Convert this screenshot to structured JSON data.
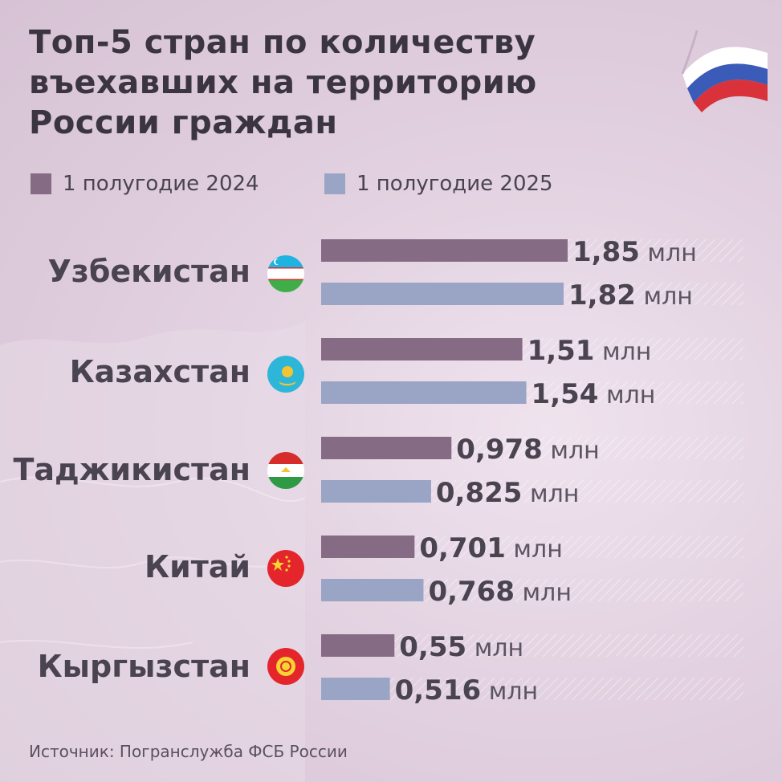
{
  "title": {
    "lines": [
      "Топ-5 стран по количеству",
      "въехавших на территорию",
      "России граждан"
    ]
  },
  "legend": [
    {
      "label": "1 полугодие 2024",
      "color": "#856b83"
    },
    {
      "label": "1 полугодие 2025",
      "color": "#9aa4c4"
    }
  ],
  "colors": {
    "bar_2024": "#856b83",
    "bar_2025": "#9aa4c4",
    "value_text": "#4a4450",
    "unit_text": "#5c5462"
  },
  "countries": [
    {
      "name": "Узбекистан",
      "flag_icon": "uzbekistan-flag-icon"
    },
    {
      "name": "Казахстан",
      "flag_icon": "kazakhstan-flag-icon"
    },
    {
      "name": "Таджикистан",
      "flag_icon": "tajikistan-flag-icon"
    },
    {
      "name": "Китай",
      "flag_icon": "china-flag-icon"
    },
    {
      "name": "Кыргызстан",
      "flag_icon": "kyrgyzstan-flag-icon"
    }
  ],
  "chart_data": {
    "type": "bar",
    "orientation": "horizontal",
    "categories": [
      "Узбекистан",
      "Казахстан",
      "Таджикистан",
      "Китай",
      "Кыргызстан"
    ],
    "series": [
      {
        "name": "1 полугодие 2024",
        "values": [
          1.85,
          1.51,
          0.978,
          0.701,
          0.55
        ],
        "labels": [
          "1,85",
          "1,51",
          "0,978",
          "0,701",
          "0,55"
        ]
      },
      {
        "name": "1 полугодие 2025",
        "values": [
          1.82,
          1.54,
          0.825,
          0.768,
          0.516
        ],
        "labels": [
          "1,82",
          "1,54",
          "0,825",
          "0,768",
          "0,516"
        ]
      }
    ],
    "unit": "млн",
    "title": "Топ-5 стран по количеству въехавших на территорию России граждан",
    "xlabel": "",
    "ylabel": "",
    "xlim": [
      0,
      1.85
    ],
    "grid": false,
    "legend_position": "top-left"
  },
  "source": "Источник: Погранслужба ФСБ России"
}
